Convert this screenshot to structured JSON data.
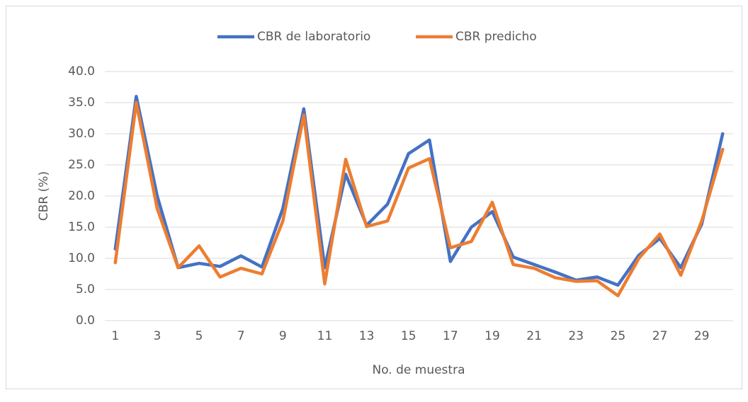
{
  "chart_data": {
    "type": "line",
    "xlabel": "No. de muestra",
    "ylabel": "CBR (%)",
    "categories": [
      "1",
      null,
      "3",
      null,
      "5",
      null,
      "7",
      null,
      "9",
      null,
      "11",
      null,
      "13",
      null,
      "15",
      null,
      "17",
      null,
      "19",
      null,
      "21",
      null,
      "23",
      null,
      "25",
      null,
      "27",
      null,
      "29",
      null
    ],
    "series": [
      {
        "name": "CBR de laboratorio",
        "color": "#4472c4",
        "values": [
          11.5,
          36,
          20,
          8.5,
          9.2,
          8.7,
          10.4,
          8.6,
          18,
          34,
          8.5,
          23.5,
          15.3,
          18.7,
          26.8,
          29,
          9.5,
          15,
          17.5,
          10.2,
          9,
          7.8,
          6.5,
          7,
          5.7,
          10.5,
          13.2,
          8.5,
          15.5,
          30
        ]
      },
      {
        "name": "CBR predicho",
        "color": "#ed7d31",
        "values": [
          9.3,
          35,
          18,
          8.5,
          12,
          7,
          8.4,
          7.5,
          16,
          33,
          5.9,
          25.9,
          15.1,
          16,
          24.5,
          26,
          11.7,
          12.7,
          19,
          9,
          8.4,
          6.9,
          6.3,
          6.4,
          4,
          10,
          13.9,
          7.3,
          16,
          27.5
        ]
      }
    ],
    "ylim": [
      0,
      40
    ],
    "yticks": [
      {
        "value": 0,
        "label": "0.0"
      },
      {
        "value": 5,
        "label": "5.0"
      },
      {
        "value": 10,
        "label": "10.0"
      },
      {
        "value": 15,
        "label": "15.0"
      },
      {
        "value": 20,
        "label": "20.0"
      },
      {
        "value": 25,
        "label": "25.0"
      },
      {
        "value": 30,
        "label": "30.0"
      },
      {
        "value": 35,
        "label": "35.0"
      },
      {
        "value": 40,
        "label": "40.0"
      }
    ],
    "grid": true,
    "legend": "top"
  }
}
